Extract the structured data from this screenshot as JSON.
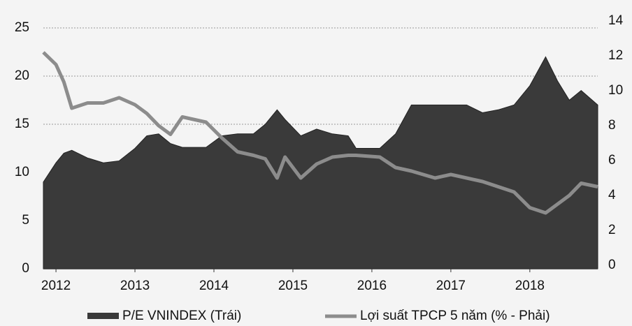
{
  "chart_data": {
    "type": "area",
    "x": [
      2011.84,
      2012.0,
      2012.1,
      2012.2,
      2012.4,
      2012.6,
      2012.8,
      2013.0,
      2013.15,
      2013.3,
      2013.45,
      2013.6,
      2013.9,
      2014.1,
      2014.3,
      2014.5,
      2014.65,
      2014.8,
      2014.9,
      2015.1,
      2015.3,
      2015.5,
      2015.7,
      2015.8,
      2016.1,
      2016.3,
      2016.5,
      2016.8,
      2017.0,
      2017.2,
      2017.4,
      2017.6,
      2017.8,
      2018.0,
      2018.2,
      2018.35,
      2018.5,
      2018.65,
      2018.86
    ],
    "series": [
      {
        "name": "P/E VNINDEX (Trái)",
        "type": "area",
        "color": "#3a3a3a",
        "values": [
          9,
          11,
          12,
          12.3,
          11.5,
          11,
          11.2,
          12.5,
          13.8,
          14,
          13,
          12.6,
          12.6,
          13.8,
          14,
          14,
          15,
          16.5,
          15.5,
          13.8,
          14.5,
          14,
          13.8,
          12.5,
          12.5,
          14,
          17,
          17,
          17,
          17,
          16.2,
          16.5,
          17,
          19,
          22,
          19.5,
          17.5,
          18.5,
          17
        ]
      },
      {
        "name": "Lợi suất TPCP  5 năm (% - Phải)",
        "type": "line",
        "axis": "y2",
        "color": "#8c8c8c",
        "values": [
          12.2,
          11.5,
          10.5,
          9,
          9.3,
          9.3,
          9.6,
          9.2,
          8.7,
          8,
          7.5,
          8.5,
          8.2,
          7.3,
          6.5,
          6.3,
          6.1,
          5,
          6.2,
          5,
          5.8,
          6.2,
          6.3,
          6.3,
          6.2,
          5.6,
          5.4,
          5,
          5.2,
          5,
          4.8,
          4.5,
          4.2,
          3.3,
          3,
          3.5,
          4,
          4.7,
          4.5
        ]
      }
    ],
    "xlim": [
      2011.84,
      2018.86
    ],
    "xticks": [
      2012,
      2013,
      2014,
      2015,
      2016,
      2017,
      2018
    ],
    "ylim": [
      0,
      25
    ],
    "yticks": [
      0,
      5,
      10,
      15,
      20,
      25
    ],
    "y2lim": [
      0,
      14
    ],
    "y2ticks": [
      0,
      2,
      4,
      6,
      8,
      10,
      12,
      14
    ],
    "grid": true
  }
}
